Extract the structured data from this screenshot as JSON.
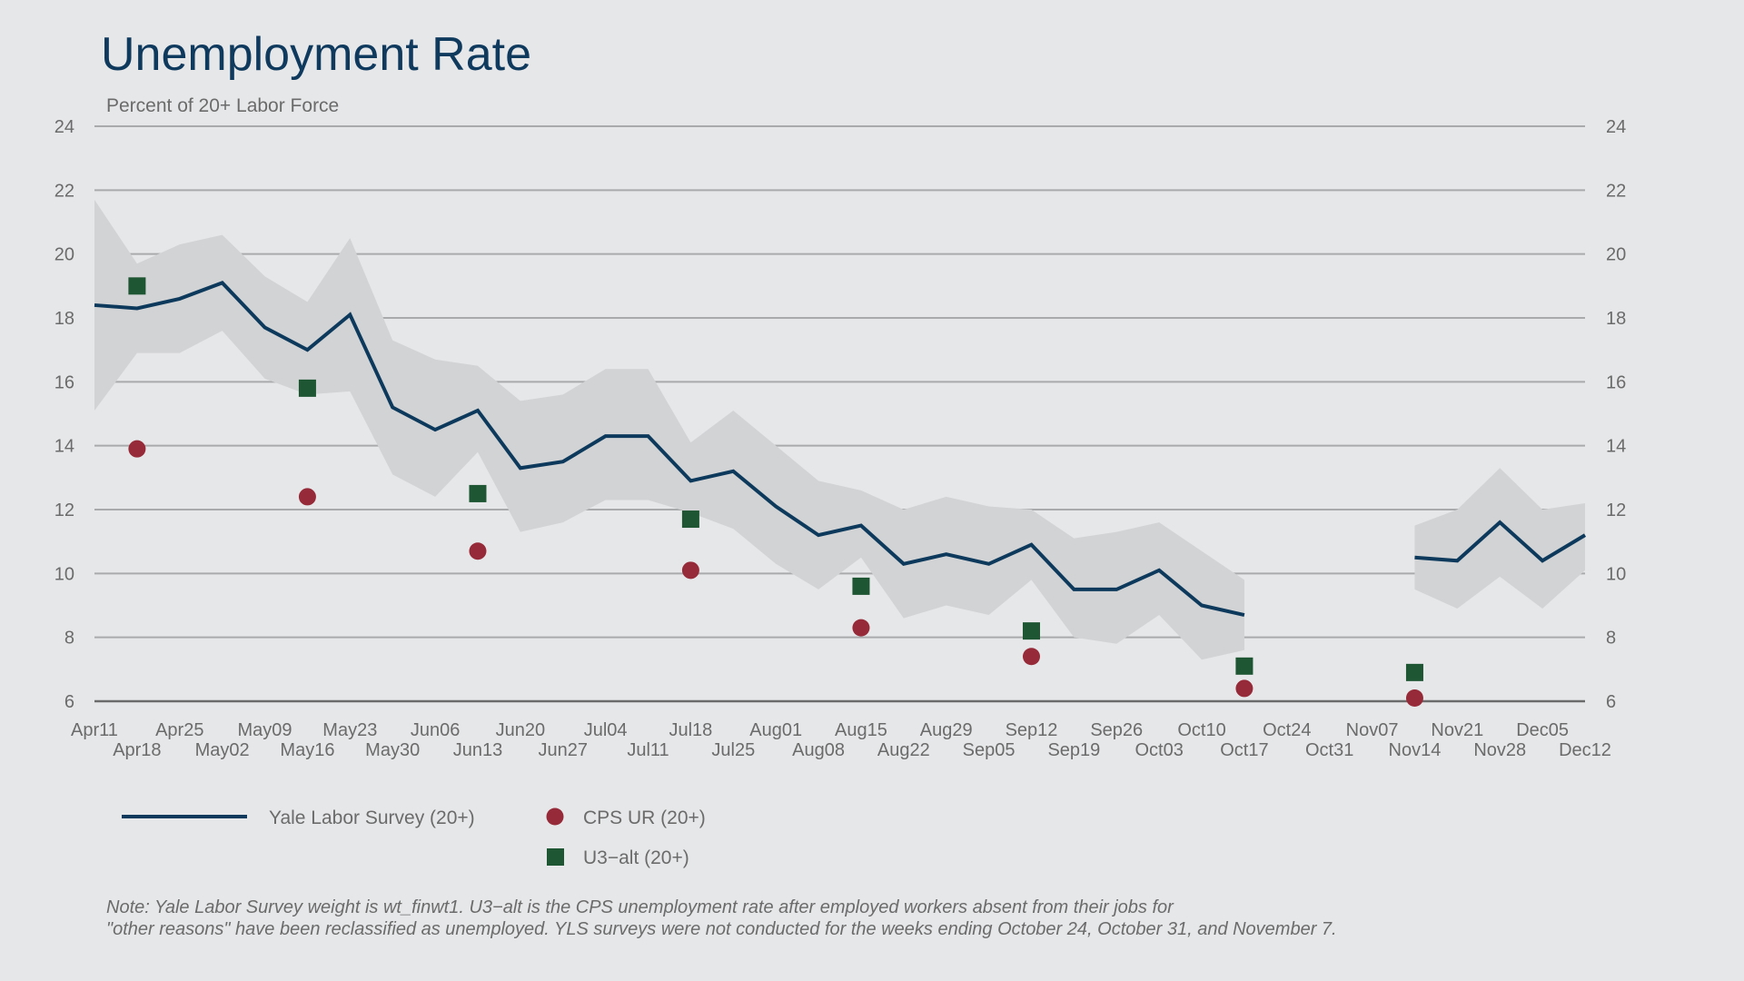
{
  "chart_data": {
    "type": "line",
    "title": "Unemployment Rate",
    "subtitle": "Percent of 20+ Labor Force",
    "ylim": [
      6,
      24
    ],
    "yticks": [
      6,
      8,
      10,
      12,
      14,
      16,
      18,
      20,
      22,
      24
    ],
    "grid": true,
    "categories": [
      "Apr11",
      "Apr18",
      "Apr25",
      "May02",
      "May09",
      "May16",
      "May23",
      "May30",
      "Jun06",
      "Jun13",
      "Jun20",
      "Jun27",
      "Jul04",
      "Jul11",
      "Jul18",
      "Jul25",
      "Aug01",
      "Aug08",
      "Aug15",
      "Aug22",
      "Aug29",
      "Sep05",
      "Sep12",
      "Sep19",
      "Sep26",
      "Oct03",
      "Oct10",
      "Oct17",
      "Oct24",
      "Oct31",
      "Nov07",
      "Nov14",
      "Nov21",
      "Nov28",
      "Dec05",
      "Dec12"
    ],
    "series": [
      {
        "name": "Yale Labor Survey (20+)",
        "kind": "line",
        "color": "#0d3a5c",
        "values": [
          18.4,
          18.3,
          18.6,
          19.1,
          17.7,
          17.0,
          18.1,
          15.2,
          14.5,
          15.1,
          13.3,
          13.5,
          14.3,
          14.3,
          12.9,
          13.2,
          12.1,
          11.2,
          11.5,
          10.3,
          10.6,
          10.3,
          10.9,
          9.5,
          9.5,
          10.1,
          9.0,
          8.7,
          null,
          null,
          null,
          10.5,
          10.4,
          11.6,
          10.4,
          11.2
        ],
        "band_low": [
          15.1,
          16.9,
          16.9,
          17.6,
          16.1,
          15.6,
          15.7,
          13.1,
          12.4,
          13.8,
          11.3,
          11.6,
          12.3,
          12.3,
          11.9,
          11.4,
          10.3,
          9.5,
          10.5,
          8.6,
          9.0,
          8.7,
          9.8,
          8.0,
          7.8,
          8.7,
          7.3,
          7.6,
          null,
          null,
          null,
          9.5,
          8.9,
          9.9,
          8.9,
          10.1
        ],
        "band_high": [
          21.7,
          19.7,
          20.3,
          20.6,
          19.3,
          18.5,
          20.5,
          17.3,
          16.7,
          16.5,
          15.4,
          15.6,
          16.4,
          16.4,
          14.1,
          15.1,
          14.0,
          12.9,
          12.6,
          12.0,
          12.4,
          12.1,
          12.0,
          11.1,
          11.3,
          11.6,
          10.7,
          9.8,
          null,
          null,
          null,
          11.5,
          12.0,
          13.3,
          12.0,
          12.2
        ]
      },
      {
        "name": "CPS UR (20+)",
        "kind": "marker-circle",
        "color": "#962a38",
        "points": [
          {
            "x": "Apr18",
            "y": 13.9
          },
          {
            "x": "May16",
            "y": 12.4
          },
          {
            "x": "Jun13",
            "y": 10.7
          },
          {
            "x": "Jul18",
            "y": 10.1
          },
          {
            "x": "Aug15",
            "y": 8.3
          },
          {
            "x": "Sep12",
            "y": 7.4
          },
          {
            "x": "Oct17",
            "y": 6.4
          },
          {
            "x": "Nov14",
            "y": 6.1
          }
        ]
      },
      {
        "name": "U3-alt (20+)",
        "kind": "marker-square",
        "color": "#1e5532",
        "points": [
          {
            "x": "Apr18",
            "y": 19.0
          },
          {
            "x": "May16",
            "y": 15.8
          },
          {
            "x": "Jun13",
            "y": 12.5
          },
          {
            "x": "Jul18",
            "y": 11.7
          },
          {
            "x": "Aug15",
            "y": 9.6
          },
          {
            "x": "Sep12",
            "y": 8.2
          },
          {
            "x": "Oct17",
            "y": 7.1
          },
          {
            "x": "Nov14",
            "y": 6.9
          }
        ]
      }
    ],
    "legend": {
      "placement": "bottom-left",
      "entries": [
        "Yale Labor Survey (20+)",
        "CPS UR (20+)",
        "U3−alt (20+)"
      ]
    },
    "note": [
      "Note: Yale Labor Survey weight is wt_finwt1. U3−alt is the CPS unemployment rate after employed workers absent from their jobs for",
      "\"other reasons\" have been reclassified as unemployed. YLS surveys were not conducted for the weeks ending October 24, October 31, and November 7."
    ],
    "colors": {
      "band": "#d2d3d5",
      "grid": "#a9aaac",
      "axis": "#6b6b6b"
    }
  }
}
